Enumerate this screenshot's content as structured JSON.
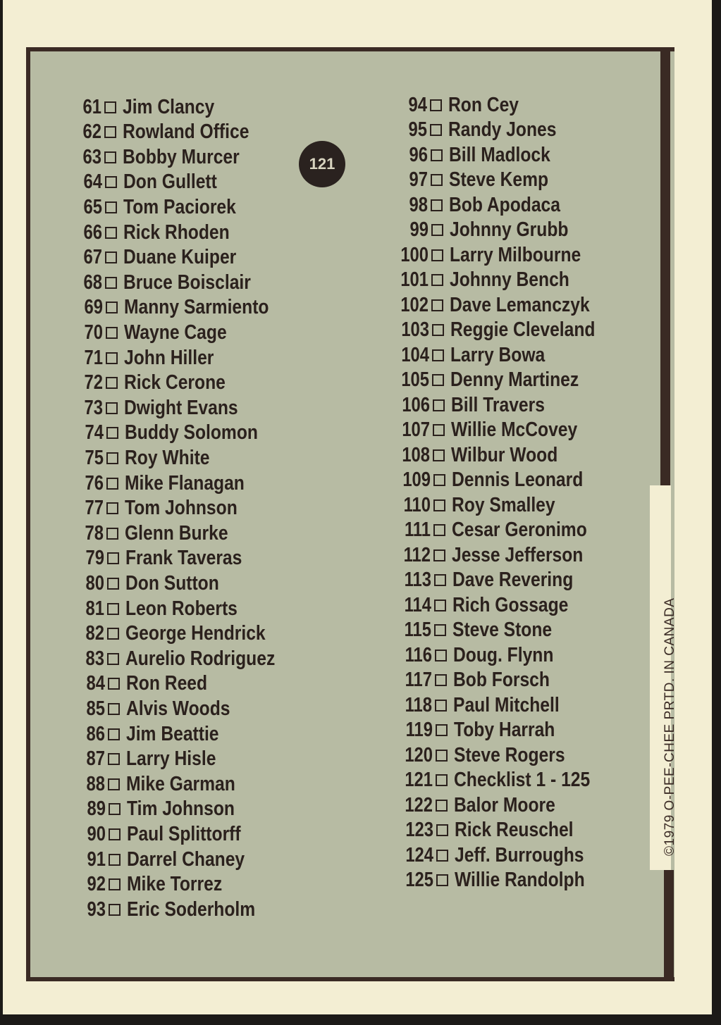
{
  "badge": "121",
  "credit": "©1979  O-PEE-CHEE     PRTD. IN CANADA",
  "left_column": [
    {
      "number": "61",
      "name": "Jim Clancy"
    },
    {
      "number": "62",
      "name": "Rowland Office"
    },
    {
      "number": "63",
      "name": "Bobby Murcer"
    },
    {
      "number": "64",
      "name": "Don Gullett"
    },
    {
      "number": "65",
      "name": "Tom Paciorek"
    },
    {
      "number": "66",
      "name": "Rick Rhoden"
    },
    {
      "number": "67",
      "name": "Duane Kuiper"
    },
    {
      "number": "68",
      "name": "Bruce Boisclair"
    },
    {
      "number": "69",
      "name": "Manny Sarmiento"
    },
    {
      "number": "70",
      "name": "Wayne Cage"
    },
    {
      "number": "71",
      "name": "John Hiller"
    },
    {
      "number": "72",
      "name": "Rick Cerone"
    },
    {
      "number": "73",
      "name": "Dwight Evans"
    },
    {
      "number": "74",
      "name": "Buddy Solomon"
    },
    {
      "number": "75",
      "name": "Roy White"
    },
    {
      "number": "76",
      "name": "Mike Flanagan"
    },
    {
      "number": "77",
      "name": "Tom Johnson"
    },
    {
      "number": "78",
      "name": "Glenn Burke"
    },
    {
      "number": "79",
      "name": "Frank Taveras"
    },
    {
      "number": "80",
      "name": "Don Sutton"
    },
    {
      "number": "81",
      "name": "Leon Roberts"
    },
    {
      "number": "82",
      "name": "George Hendrick"
    },
    {
      "number": "83",
      "name": "Aurelio Rodriguez"
    },
    {
      "number": "84",
      "name": "Ron Reed"
    },
    {
      "number": "85",
      "name": "Alvis Woods"
    },
    {
      "number": "86",
      "name": "Jim Beattie"
    },
    {
      "number": "87",
      "name": "Larry Hisle"
    },
    {
      "number": "88",
      "name": "Mike Garman"
    },
    {
      "number": "89",
      "name": "Tim Johnson"
    },
    {
      "number": "90",
      "name": "Paul Splittorff"
    },
    {
      "number": "91",
      "name": "Darrel Chaney"
    },
    {
      "number": "92",
      "name": "Mike Torrez"
    },
    {
      "number": "93",
      "name": "Eric Soderholm"
    }
  ],
  "right_column": [
    {
      "number": "94",
      "name": "Ron Cey"
    },
    {
      "number": "95",
      "name": "Randy Jones"
    },
    {
      "number": "96",
      "name": "Bill Madlock"
    },
    {
      "number": "97",
      "name": "Steve Kemp"
    },
    {
      "number": "98",
      "name": "Bob Apodaca"
    },
    {
      "number": "99",
      "name": "Johnny Grubb"
    },
    {
      "number": "100",
      "name": "Larry Milbourne"
    },
    {
      "number": "101",
      "name": "Johnny Bench"
    },
    {
      "number": "102",
      "name": "Dave Lemanczyk"
    },
    {
      "number": "103",
      "name": "Reggie Cleveland"
    },
    {
      "number": "104",
      "name": "Larry Bowa"
    },
    {
      "number": "105",
      "name": "Denny Martinez"
    },
    {
      "number": "106",
      "name": "Bill Travers"
    },
    {
      "number": "107",
      "name": "Willie McCovey"
    },
    {
      "number": "108",
      "name": "Wilbur Wood"
    },
    {
      "number": "109",
      "name": "Dennis Leonard"
    },
    {
      "number": "110",
      "name": "Roy Smalley"
    },
    {
      "number": "111",
      "name": "Cesar Geronimo"
    },
    {
      "number": "112",
      "name": "Jesse Jefferson"
    },
    {
      "number": "113",
      "name": "Dave Revering"
    },
    {
      "number": "114",
      "name": "Rich Gossage"
    },
    {
      "number": "115",
      "name": "Steve Stone"
    },
    {
      "number": "116",
      "name": "Doug. Flynn"
    },
    {
      "number": "117",
      "name": "Bob Forsch"
    },
    {
      "number": "118",
      "name": "Paul Mitchell"
    },
    {
      "number": "119",
      "name": "Toby Harrah"
    },
    {
      "number": "120",
      "name": "Steve Rogers"
    },
    {
      "number": "121",
      "name": "Checklist 1 - 125"
    },
    {
      "number": "122",
      "name": "Balor Moore"
    },
    {
      "number": "123",
      "name": "Rick Reuschel"
    },
    {
      "number": "124",
      "name": "Jeff. Burroughs"
    },
    {
      "number": "125",
      "name": "Willie Randolph"
    }
  ]
}
